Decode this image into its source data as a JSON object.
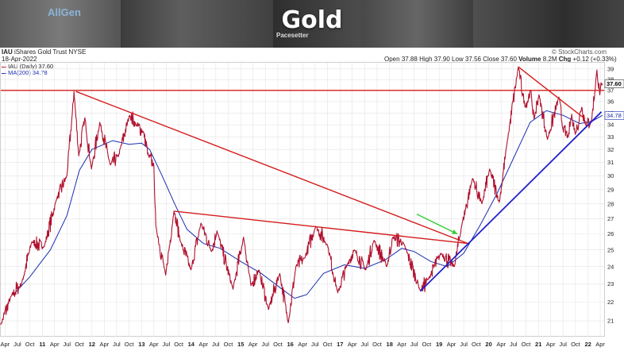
{
  "banner": {
    "title": "Gold",
    "brand_text": "AllGen",
    "pacesetter_text": "Pacesetter"
  },
  "header": {
    "symbol": "IAU",
    "name": "iShares Gold Trust",
    "exchange": "NYSE",
    "date": "18-Apr-2022",
    "open_label": "Open",
    "open": "37.88",
    "high_label": "High",
    "high": "37.90",
    "low_label": "Low",
    "low": "37.56",
    "close_label": "Close",
    "close": "37.60",
    "volume_label": "Volume",
    "volume": "8.2M",
    "chg_label": "Chg",
    "chg": "+0.12 (+0.33%)",
    "watermark": "© StockCharts.com"
  },
  "legend": {
    "price_series": "IAU (Daily) 37.60",
    "ma_series": "MA(200) 34.78"
  },
  "chart_data": {
    "type": "line",
    "price_series_name": "IAU (Daily)",
    "ma_series_name": "MA(200)",
    "last_price": 37.6,
    "last_ma": 34.78,
    "last_price_label": "37.60",
    "last_ma_label": "34.78",
    "ylim": [
      20.2,
      39.6
    ],
    "y_scale": "log",
    "y_ticks": [
      21,
      22,
      23,
      24,
      25,
      26,
      27,
      28,
      29,
      30,
      31,
      32,
      33,
      34,
      35,
      36,
      37,
      38,
      39
    ],
    "xlim": [
      "2010-03-01",
      "2022-04-30"
    ],
    "x_ticks": [
      {
        "date": "2010-04-01",
        "label": "Apr"
      },
      {
        "date": "2010-07-01",
        "label": "Jul"
      },
      {
        "date": "2010-10-01",
        "label": "Oct"
      },
      {
        "date": "2011-01-01",
        "label": "11"
      },
      {
        "date": "2011-04-01",
        "label": "Apr"
      },
      {
        "date": "2011-07-01",
        "label": "Jul"
      },
      {
        "date": "2011-10-01",
        "label": "Oct"
      },
      {
        "date": "2012-01-01",
        "label": "12"
      },
      {
        "date": "2012-04-01",
        "label": "Apr"
      },
      {
        "date": "2012-07-01",
        "label": "Jul"
      },
      {
        "date": "2012-10-01",
        "label": "Oct"
      },
      {
        "date": "2013-01-01",
        "label": "13"
      },
      {
        "date": "2013-04-01",
        "label": "Apr"
      },
      {
        "date": "2013-07-01",
        "label": "Jul"
      },
      {
        "date": "2013-10-01",
        "label": "Oct"
      },
      {
        "date": "2014-01-01",
        "label": "14"
      },
      {
        "date": "2014-04-01",
        "label": "Apr"
      },
      {
        "date": "2014-07-01",
        "label": "Jul"
      },
      {
        "date": "2014-10-01",
        "label": "Oct"
      },
      {
        "date": "2015-01-01",
        "label": "15"
      },
      {
        "date": "2015-04-01",
        "label": "Apr"
      },
      {
        "date": "2015-07-01",
        "label": "Jul"
      },
      {
        "date": "2015-10-01",
        "label": "Oct"
      },
      {
        "date": "2016-01-01",
        "label": "16"
      },
      {
        "date": "2016-04-01",
        "label": "Apr"
      },
      {
        "date": "2016-07-01",
        "label": "Jul"
      },
      {
        "date": "2016-10-01",
        "label": "Oct"
      },
      {
        "date": "2017-01-01",
        "label": "17"
      },
      {
        "date": "2017-04-01",
        "label": "Apr"
      },
      {
        "date": "2017-07-01",
        "label": "Jul"
      },
      {
        "date": "2017-10-01",
        "label": "Oct"
      },
      {
        "date": "2018-01-01",
        "label": "18"
      },
      {
        "date": "2018-04-01",
        "label": "Apr"
      },
      {
        "date": "2018-07-01",
        "label": "Jul"
      },
      {
        "date": "2018-10-01",
        "label": "Oct"
      },
      {
        "date": "2019-01-01",
        "label": "19"
      },
      {
        "date": "2019-04-01",
        "label": "Apr"
      },
      {
        "date": "2019-07-01",
        "label": "Jul"
      },
      {
        "date": "2019-10-01",
        "label": "Oct"
      },
      {
        "date": "2020-01-01",
        "label": "20"
      },
      {
        "date": "2020-04-01",
        "label": "Apr"
      },
      {
        "date": "2020-07-01",
        "label": "Jul"
      },
      {
        "date": "2020-10-01",
        "label": "Oct"
      },
      {
        "date": "2021-01-01",
        "label": "21"
      },
      {
        "date": "2021-04-01",
        "label": "Apr"
      },
      {
        "date": "2021-07-01",
        "label": "Jul"
      },
      {
        "date": "2021-10-01",
        "label": "Oct"
      },
      {
        "date": "2022-01-01",
        "label": "22"
      },
      {
        "date": "2022-04-01",
        "label": "Apr"
      }
    ],
    "price_anchors": [
      [
        "2010-03-01",
        20.8
      ],
      [
        "2010-05-15",
        22.3
      ],
      [
        "2010-08-01",
        23.0
      ],
      [
        "2010-10-15",
        25.5
      ],
      [
        "2011-01-15",
        25.2
      ],
      [
        "2011-04-15",
        28.3
      ],
      [
        "2011-07-01",
        30.0
      ],
      [
        "2011-08-10",
        35.0
      ],
      [
        "2011-08-22",
        36.9
      ],
      [
        "2011-09-26",
        31.5
      ],
      [
        "2011-11-10",
        34.6
      ],
      [
        "2011-12-29",
        30.5
      ],
      [
        "2012-02-28",
        34.2
      ],
      [
        "2012-05-16",
        30.8
      ],
      [
        "2012-07-15",
        31.5
      ],
      [
        "2012-10-04",
        34.8
      ],
      [
        "2012-11-20",
        34.0
      ],
      [
        "2013-01-15",
        33.4
      ],
      [
        "2013-02-20",
        31.5
      ],
      [
        "2013-04-01",
        30.8
      ],
      [
        "2013-04-16",
        26.5
      ],
      [
        "2013-06-27",
        23.5
      ],
      [
        "2013-08-27",
        27.5
      ],
      [
        "2013-10-15",
        25.5
      ],
      [
        "2013-12-31",
        23.8
      ],
      [
        "2014-03-14",
        26.7
      ],
      [
        "2014-06-01",
        24.9
      ],
      [
        "2014-07-10",
        26.2
      ],
      [
        "2014-11-05",
        22.7
      ],
      [
        "2015-01-22",
        25.8
      ],
      [
        "2015-03-17",
        22.9
      ],
      [
        "2015-05-15",
        23.8
      ],
      [
        "2015-07-24",
        21.6
      ],
      [
        "2015-10-15",
        23.6
      ],
      [
        "2015-12-17",
        20.9
      ],
      [
        "2016-02-11",
        24.0
      ],
      [
        "2016-04-15",
        24.5
      ],
      [
        "2016-07-06",
        26.5
      ],
      [
        "2016-10-01",
        25.3
      ],
      [
        "2016-12-15",
        22.5
      ],
      [
        "2017-02-27",
        24.2
      ],
      [
        "2017-04-17",
        25.0
      ],
      [
        "2017-07-10",
        23.8
      ],
      [
        "2017-09-08",
        25.6
      ],
      [
        "2017-12-12",
        24.0
      ],
      [
        "2018-01-25",
        25.8
      ],
      [
        "2018-04-15",
        25.4
      ],
      [
        "2018-08-16",
        22.6
      ],
      [
        "2018-10-15",
        23.3
      ],
      [
        "2019-01-15",
        24.8
      ],
      [
        "2019-04-23",
        24.0
      ],
      [
        "2019-06-15",
        26.5
      ],
      [
        "2019-09-04",
        29.8
      ],
      [
        "2019-11-12",
        28.0
      ],
      [
        "2020-01-08",
        30.5
      ],
      [
        "2020-03-19",
        28.1
      ],
      [
        "2020-05-15",
        32.5
      ],
      [
        "2020-08-06",
        39.2
      ],
      [
        "2020-09-25",
        35.5
      ],
      [
        "2020-11-06",
        37.0
      ],
      [
        "2020-11-30",
        34.5
      ],
      [
        "2021-01-05",
        36.6
      ],
      [
        "2021-03-08",
        32.8
      ],
      [
        "2021-06-01",
        36.4
      ],
      [
        "2021-06-29",
        33.7
      ],
      [
        "2021-08-09",
        33.0
      ],
      [
        "2021-09-03",
        34.9
      ],
      [
        "2021-09-29",
        33.2
      ],
      [
        "2021-11-16",
        35.5
      ],
      [
        "2021-12-15",
        34.0
      ],
      [
        "2022-01-27",
        34.3
      ],
      [
        "2022-03-08",
        38.9
      ],
      [
        "2022-03-29",
        36.6
      ],
      [
        "2022-04-18",
        37.6
      ]
    ],
    "ma_anchors": [
      [
        "2010-06-01",
        22.4
      ],
      [
        "2010-10-01",
        23.4
      ],
      [
        "2011-03-01",
        25.0
      ],
      [
        "2011-07-01",
        27.2
      ],
      [
        "2011-10-01",
        30.4
      ],
      [
        "2012-01-01",
        32.0
      ],
      [
        "2012-06-01",
        32.7
      ],
      [
        "2012-10-01",
        32.4
      ],
      [
        "2013-01-01",
        32.5
      ],
      [
        "2013-03-01",
        32.0
      ],
      [
        "2013-06-01",
        30.0
      ],
      [
        "2013-09-01",
        28.0
      ],
      [
        "2013-12-01",
        26.3
      ],
      [
        "2014-04-01",
        25.4
      ],
      [
        "2014-08-01",
        25.1
      ],
      [
        "2015-01-01",
        24.3
      ],
      [
        "2015-06-01",
        23.6
      ],
      [
        "2015-11-01",
        22.7
      ],
      [
        "2016-02-01",
        22.2
      ],
      [
        "2016-05-01",
        22.4
      ],
      [
        "2016-09-01",
        23.6
      ],
      [
        "2017-02-01",
        24.1
      ],
      [
        "2017-07-01",
        23.9
      ],
      [
        "2017-12-01",
        24.4
      ],
      [
        "2018-04-01",
        25.1
      ],
      [
        "2018-07-01",
        24.9
      ],
      [
        "2018-11-01",
        24.3
      ],
      [
        "2019-03-01",
        24.0
      ],
      [
        "2019-07-01",
        24.8
      ],
      [
        "2019-11-01",
        26.6
      ],
      [
        "2020-03-01",
        28.7
      ],
      [
        "2020-07-01",
        31.3
      ],
      [
        "2020-11-01",
        34.2
      ],
      [
        "2021-03-01",
        35.2
      ],
      [
        "2021-07-01",
        34.8
      ],
      [
        "2021-11-01",
        34.1
      ],
      [
        "2022-02-01",
        34.3
      ],
      [
        "2022-04-18",
        34.8
      ]
    ],
    "annotations": [
      {
        "type": "horizontal_line",
        "color": "#d41b1b",
        "y": 37.0
      },
      {
        "type": "trendline",
        "color": "#d41b1b",
        "from": [
          "2011-09-06",
          36.9
        ],
        "to": [
          "2019-08-01",
          25.4
        ]
      },
      {
        "type": "trendline",
        "color": "#d41b1b",
        "from": [
          "2013-08-27",
          27.5
        ],
        "to": [
          "2019-08-01",
          25.4
        ]
      },
      {
        "type": "trendline",
        "color": "#d41b1b",
        "from": [
          "2020-08-06",
          39.2
        ],
        "to": [
          "2021-12-10",
          34.5
        ]
      },
      {
        "type": "trendline",
        "color": "#2222cc",
        "from": [
          "2018-08-16",
          22.6
        ],
        "to": [
          "2022-04-10",
          35.1
        ]
      },
      {
        "type": "arrow",
        "color": "#33cc33",
        "from": [
          "2018-07-20",
          27.3
        ],
        "to": [
          "2019-05-15",
          26.0
        ]
      }
    ],
    "colors": {
      "price": "#b0102e",
      "ma": "#1a2fb0",
      "red_line": "#d41b1b",
      "blue_line": "#2222cc",
      "arrow": "#33cc33",
      "grid": "#e4e4e4"
    },
    "grid": true
  }
}
